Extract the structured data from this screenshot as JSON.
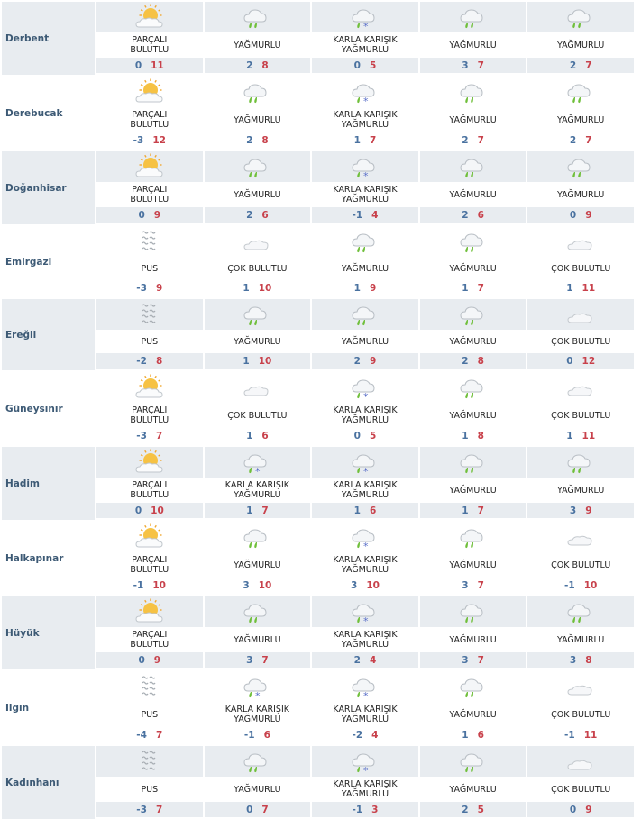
{
  "conditions": {
    "PB": "PARÇALI BULUTLU",
    "Y": "YAĞMURLU",
    "KKY": "KARLA KARIŞIK YAĞMURLU",
    "PUS": "PUS",
    "CB": "ÇOK BULUTLU"
  },
  "icons": {
    "PB": "partly-cloudy-icon",
    "Y": "rain-icon",
    "KKY": "sleet-icon",
    "PUS": "fog-icon",
    "CB": "cloudy-icon"
  },
  "colors": {
    "min": "#4a72a0",
    "max": "#c8414b",
    "row_alt": "#e8ecf0",
    "city": "#3d5a75"
  },
  "cities": [
    {
      "name": "Derbent",
      "days": [
        {
          "c": "PB",
          "label": "PARÇALI BULUTLU",
          "min": "0",
          "max": "11"
        },
        {
          "c": "Y",
          "label": "YAĞMURLU",
          "min": "2",
          "max": "8"
        },
        {
          "c": "KKY",
          "label": "KARLA KARIŞIK YAĞMURLU",
          "min": "0",
          "max": "5"
        },
        {
          "c": "Y",
          "label": "YAĞMURLU",
          "min": "3",
          "max": "7"
        },
        {
          "c": "Y",
          "label": "YAĞMURLU",
          "min": "2",
          "max": "7"
        }
      ]
    },
    {
      "name": "Derebucak",
      "days": [
        {
          "c": "PB",
          "label": "PARÇALI BULUTLU",
          "min": "-3",
          "max": "12"
        },
        {
          "c": "Y",
          "label": "YAĞMURLU",
          "min": "2",
          "max": "8"
        },
        {
          "c": "KKY",
          "label": "KARLA KARIŞIK YAĞMURLU",
          "min": "1",
          "max": "7"
        },
        {
          "c": "Y",
          "label": "YAĞMURLU",
          "min": "2",
          "max": "7"
        },
        {
          "c": "Y",
          "label": "YAĞMURLU",
          "min": "2",
          "max": "7"
        }
      ]
    },
    {
      "name": "Doğanhisar",
      "days": [
        {
          "c": "PB",
          "label": "PARÇALI BULUTLU",
          "min": "0",
          "max": "9"
        },
        {
          "c": "Y",
          "label": "YAĞMURLU",
          "min": "2",
          "max": "6"
        },
        {
          "c": "KKY",
          "label": "KARLA KARIŞIK YAĞMURLU",
          "min": "-1",
          "max": "4"
        },
        {
          "c": "Y",
          "label": "YAĞMURLU",
          "min": "2",
          "max": "6"
        },
        {
          "c": "Y",
          "label": "YAĞMURLU",
          "min": "0",
          "max": "9"
        }
      ]
    },
    {
      "name": "Emirgazi",
      "days": [
        {
          "c": "PUS",
          "label": "PUS",
          "min": "-3",
          "max": "9"
        },
        {
          "c": "CB",
          "label": "ÇOK BULUTLU",
          "min": "1",
          "max": "10"
        },
        {
          "c": "Y",
          "label": "YAĞMURLU",
          "min": "1",
          "max": "9"
        },
        {
          "c": "Y",
          "label": "YAĞMURLU",
          "min": "1",
          "max": "7"
        },
        {
          "c": "CB",
          "label": "ÇOK BULUTLU",
          "min": "1",
          "max": "11"
        }
      ]
    },
    {
      "name": "Ereğli",
      "days": [
        {
          "c": "PUS",
          "label": "PUS",
          "min": "-2",
          "max": "8"
        },
        {
          "c": "Y",
          "label": "YAĞMURLU",
          "min": "1",
          "max": "10"
        },
        {
          "c": "Y",
          "label": "YAĞMURLU",
          "min": "2",
          "max": "9"
        },
        {
          "c": "Y",
          "label": "YAĞMURLU",
          "min": "2",
          "max": "8"
        },
        {
          "c": "CB",
          "label": "ÇOK BULUTLU",
          "min": "0",
          "max": "12"
        }
      ]
    },
    {
      "name": "Güneysınır",
      "days": [
        {
          "c": "PB",
          "label": "PARÇALI BULUTLU",
          "min": "-3",
          "max": "7"
        },
        {
          "c": "CB",
          "label": "ÇOK BULUTLU",
          "min": "1",
          "max": "6"
        },
        {
          "c": "KKY",
          "label": "KARLA KARIŞIK YAĞMURLU",
          "min": "0",
          "max": "5"
        },
        {
          "c": "Y",
          "label": "YAĞMURLU",
          "min": "1",
          "max": "8"
        },
        {
          "c": "CB",
          "label": "ÇOK BULUTLU",
          "min": "1",
          "max": "11"
        }
      ]
    },
    {
      "name": "Hadim",
      "days": [
        {
          "c": "PB",
          "label": "PARÇALI BULUTLU",
          "min": "0",
          "max": "10"
        },
        {
          "c": "KKY",
          "label": "KARLA KARIŞIK YAĞMURLU",
          "min": "1",
          "max": "7"
        },
        {
          "c": "KKY",
          "label": "KARLA KARIŞIK YAĞMURLU",
          "min": "1",
          "max": "6"
        },
        {
          "c": "Y",
          "label": "YAĞMURLU",
          "min": "1",
          "max": "7"
        },
        {
          "c": "Y",
          "label": "YAĞMURLU",
          "min": "3",
          "max": "9"
        }
      ]
    },
    {
      "name": "Halkapınar",
      "days": [
        {
          "c": "PB",
          "label": "PARÇALI BULUTLU",
          "min": "-1",
          "max": "10"
        },
        {
          "c": "Y",
          "label": "YAĞMURLU",
          "min": "3",
          "max": "10"
        },
        {
          "c": "KKY",
          "label": "KARLA KARIŞIK YAĞMURLU",
          "min": "3",
          "max": "10"
        },
        {
          "c": "Y",
          "label": "YAĞMURLU",
          "min": "3",
          "max": "7"
        },
        {
          "c": "CB",
          "label": "ÇOK BULUTLU",
          "min": "-1",
          "max": "10"
        }
      ]
    },
    {
      "name": "Hüyük",
      "days": [
        {
          "c": "PB",
          "label": "PARÇALI BULUTLU",
          "min": "0",
          "max": "9"
        },
        {
          "c": "Y",
          "label": "YAĞMURLU",
          "min": "3",
          "max": "7"
        },
        {
          "c": "KKY",
          "label": "KARLA KARIŞIK YAĞMURLU",
          "min": "2",
          "max": "4"
        },
        {
          "c": "Y",
          "label": "YAĞMURLU",
          "min": "3",
          "max": "7"
        },
        {
          "c": "Y",
          "label": "YAĞMURLU",
          "min": "3",
          "max": "8"
        }
      ]
    },
    {
      "name": "Ilgın",
      "days": [
        {
          "c": "PUS",
          "label": "PUS",
          "min": "-4",
          "max": "7"
        },
        {
          "c": "KKY",
          "label": "KARLA KARIŞIK YAĞMURLU",
          "min": "-1",
          "max": "6"
        },
        {
          "c": "KKY",
          "label": "KARLA KARIŞIK YAĞMURLU",
          "min": "-2",
          "max": "4"
        },
        {
          "c": "Y",
          "label": "YAĞMURLU",
          "min": "1",
          "max": "6"
        },
        {
          "c": "CB",
          "label": "ÇOK BULUTLU",
          "min": "-1",
          "max": "11"
        }
      ]
    },
    {
      "name": "Kadınhanı",
      "days": [
        {
          "c": "PUS",
          "label": "PUS",
          "min": "-3",
          "max": "7"
        },
        {
          "c": "Y",
          "label": "YAĞMURLU",
          "min": "0",
          "max": "7"
        },
        {
          "c": "KKY",
          "label": "KARLA KARIŞIK YAĞMURLU",
          "min": "-1",
          "max": "3"
        },
        {
          "c": "Y",
          "label": "YAĞMURLU",
          "min": "2",
          "max": "5"
        },
        {
          "c": "CB",
          "label": "ÇOK BULUTLU",
          "min": "0",
          "max": "9"
        }
      ]
    }
  ]
}
